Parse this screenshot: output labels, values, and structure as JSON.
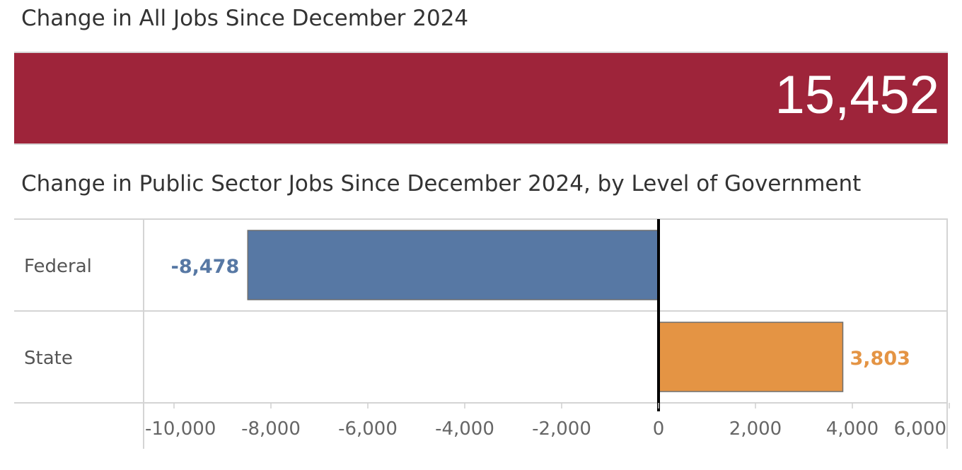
{
  "kpi": {
    "title": "Change in All Jobs Since December 2024",
    "value": "15,452",
    "color": "#9e243a"
  },
  "chart_data": {
    "type": "bar",
    "orientation": "horizontal",
    "title": "Change in Public Sector Jobs Since December 2024, by Level of Government",
    "categories": [
      "Federal",
      "State"
    ],
    "values": [
      -8478,
      3803
    ],
    "value_labels": [
      "-8,478",
      "3,803"
    ],
    "colors": [
      "#5778a4",
      "#e49444"
    ],
    "xlim": [
      -10000,
      6000
    ],
    "xticks": [
      -10000,
      -8000,
      -6000,
      -4000,
      -2000,
      0,
      2000,
      4000,
      6000
    ],
    "xtick_labels": [
      "-10,000",
      "-8,000",
      "-6,000",
      "-4,000",
      "-2,000",
      "0",
      "2,000",
      "4,000",
      "6,000"
    ],
    "xlabel": "",
    "ylabel": "",
    "grid": false,
    "zero_line": true
  }
}
